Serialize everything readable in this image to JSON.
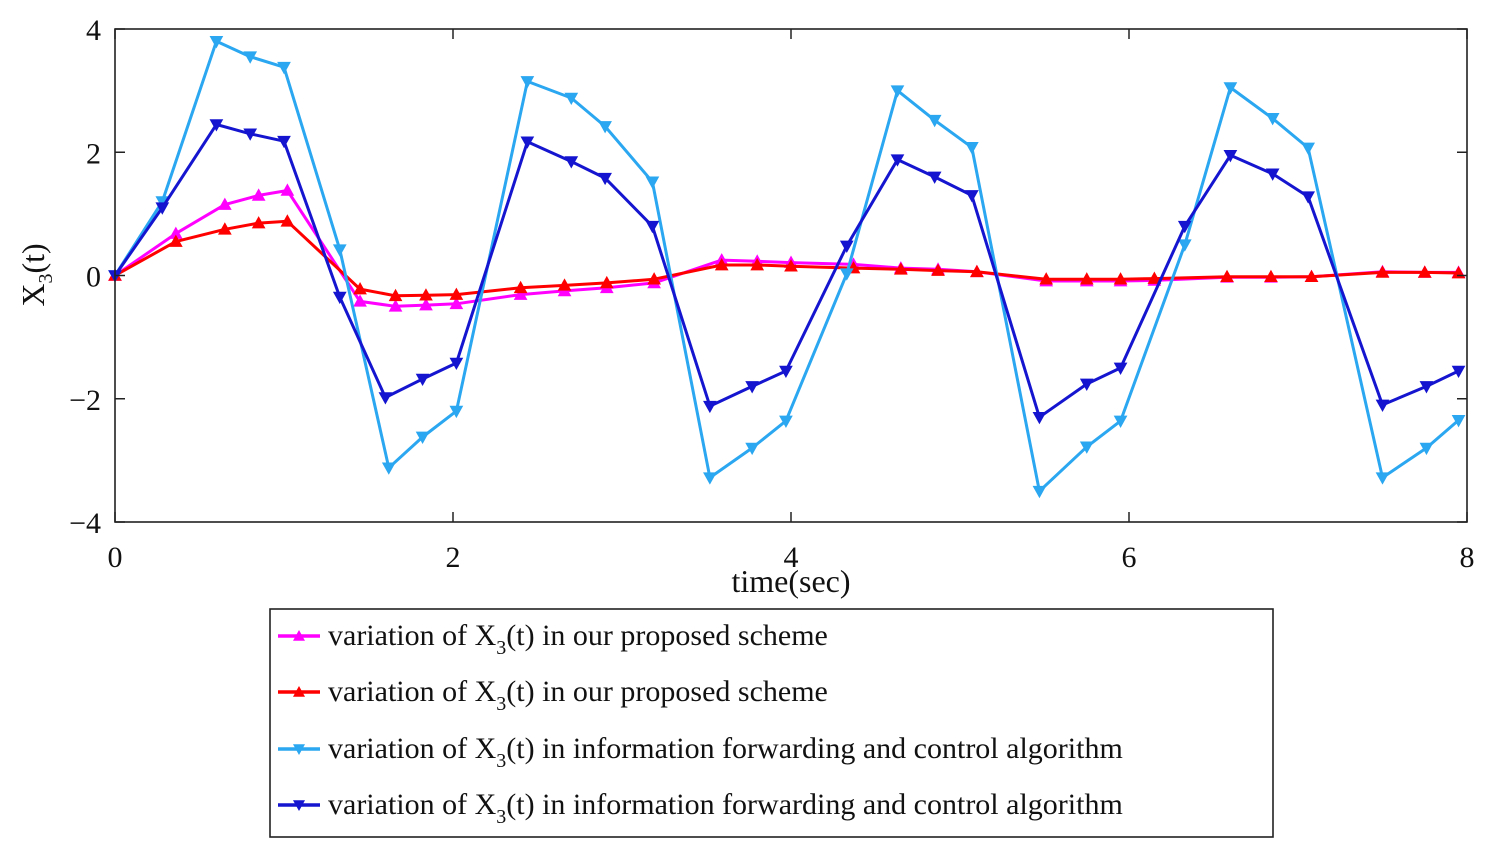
{
  "chart_data": {
    "type": "line",
    "title": "",
    "xlabel": "time(sec)",
    "ylabel": "X3(t)",
    "ylabel_main": "X",
    "ylabel_sub": "3",
    "ylabel_tail": "(t)",
    "xlim": [
      0,
      8
    ],
    "ylim": [
      -4,
      4
    ],
    "xticks": [
      0,
      2,
      4,
      6,
      8
    ],
    "xtick_labels": [
      "0",
      "2",
      "4",
      "6",
      "8"
    ],
    "yticks": [
      -4,
      -2,
      0,
      2,
      4
    ],
    "ytick_labels": [
      "−4",
      "−2",
      "0",
      "2",
      "4"
    ],
    "grid": false,
    "legend_position": "below",
    "series": [
      {
        "name": "variation of X3(t) in our proposed scheme",
        "legend_parts": [
          "variation of X",
          "3",
          "(t) in our proposed scheme"
        ],
        "color": "#ff00ff",
        "marker": "triangle-up",
        "x": [
          0,
          0.36,
          0.65,
          0.85,
          1.02,
          1.45,
          1.66,
          1.84,
          2.02,
          2.4,
          2.66,
          2.91,
          3.19,
          3.59,
          3.8,
          4.0,
          4.37,
          4.65,
          4.87,
          5.1,
          5.51,
          5.75,
          5.95,
          6.15,
          6.58,
          6.84,
          7.08,
          7.5,
          7.75,
          7.95
        ],
        "y": [
          0,
          0.68,
          1.15,
          1.3,
          1.38,
          -0.42,
          -0.5,
          -0.48,
          -0.46,
          -0.31,
          -0.25,
          -0.2,
          -0.12,
          0.25,
          0.23,
          0.21,
          0.18,
          0.12,
          0.1,
          0.06,
          -0.09,
          -0.09,
          -0.09,
          -0.08,
          -0.03,
          -0.03,
          -0.02,
          0.06,
          0.05,
          0.05
        ]
      },
      {
        "name": "variation of X3(t) in our proposed scheme",
        "legend_parts": [
          "variation of X",
          "3",
          "(t) in our proposed scheme"
        ],
        "color": "#ff0000",
        "marker": "triangle-up",
        "x": [
          0,
          0.36,
          0.65,
          0.85,
          1.02,
          1.45,
          1.66,
          1.84,
          2.02,
          2.4,
          2.66,
          2.91,
          3.19,
          3.59,
          3.8,
          4.0,
          4.37,
          4.65,
          4.87,
          5.1,
          5.51,
          5.75,
          5.95,
          6.15,
          6.58,
          6.84,
          7.08,
          7.5,
          7.75,
          7.95
        ],
        "y": [
          0,
          0.55,
          0.75,
          0.85,
          0.88,
          -0.22,
          -0.33,
          -0.32,
          -0.31,
          -0.2,
          -0.16,
          -0.12,
          -0.06,
          0.17,
          0.17,
          0.15,
          0.12,
          0.1,
          0.08,
          0.06,
          -0.06,
          -0.06,
          -0.06,
          -0.05,
          -0.02,
          -0.02,
          -0.02,
          0.05,
          0.05,
          0.04
        ]
      },
      {
        "name": "variation of X3(t) in information forwarding and control algorithm",
        "legend_parts": [
          "variation of X",
          "3",
          "(t) in information forwarding and control algorithm"
        ],
        "color": "#2aa7f0",
        "marker": "triangle-down",
        "x": [
          0,
          0.28,
          0.6,
          0.8,
          1.0,
          1.33,
          1.62,
          1.82,
          2.02,
          2.44,
          2.7,
          2.9,
          3.18,
          3.52,
          3.77,
          3.97,
          4.33,
          4.63,
          4.85,
          5.07,
          5.47,
          5.75,
          5.95,
          6.33,
          6.6,
          6.85,
          7.06,
          7.5,
          7.76,
          7.95
        ],
        "y": [
          0,
          1.2,
          3.8,
          3.55,
          3.38,
          0.42,
          -3.12,
          -2.62,
          -2.2,
          3.15,
          2.88,
          2.42,
          1.52,
          -3.28,
          -2.8,
          -2.36,
          0.03,
          3.0,
          2.52,
          2.08,
          -3.5,
          -2.78,
          -2.36,
          0.5,
          3.05,
          2.55,
          2.07,
          -3.28,
          -2.8,
          -2.35
        ]
      },
      {
        "name": "variation of X3(t) in information forwarding and control algorithm",
        "legend_parts": [
          "variation of X",
          "3",
          "(t) in information forwarding and control algorithm"
        ],
        "color": "#1515d0",
        "marker": "triangle-down",
        "x": [
          0,
          0.28,
          0.6,
          0.8,
          1.0,
          1.33,
          1.6,
          1.82,
          2.02,
          2.44,
          2.7,
          2.9,
          3.18,
          3.52,
          3.77,
          3.97,
          4.33,
          4.63,
          4.85,
          5.07,
          5.47,
          5.75,
          5.95,
          6.33,
          6.6,
          6.85,
          7.06,
          7.5,
          7.76,
          7.95
        ],
        "y": [
          0,
          1.1,
          2.45,
          2.3,
          2.18,
          -0.35,
          -1.98,
          -1.68,
          -1.42,
          2.17,
          1.85,
          1.58,
          0.8,
          -2.12,
          -1.8,
          -1.55,
          0.48,
          1.88,
          1.6,
          1.3,
          -2.3,
          -1.76,
          -1.5,
          0.8,
          1.95,
          1.65,
          1.28,
          -2.1,
          -1.8,
          -1.55
        ]
      }
    ]
  }
}
